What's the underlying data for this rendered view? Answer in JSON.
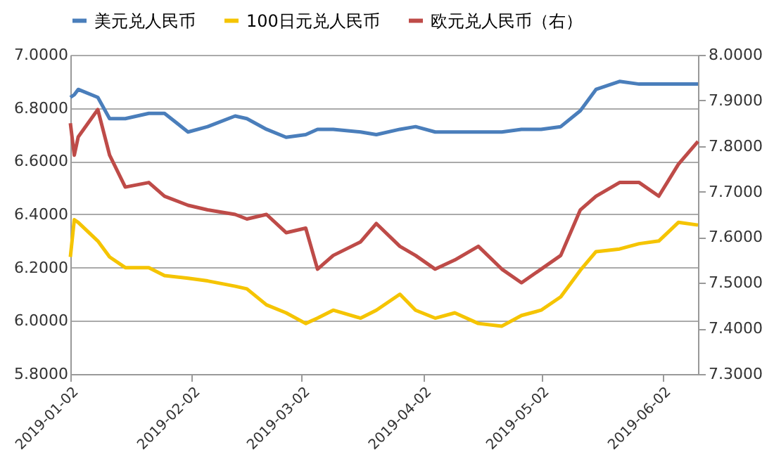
{
  "chart_data": {
    "type": "line",
    "legend": "top",
    "grid": "y",
    "x": [
      "2019-01-02",
      "2019-01-03",
      "2019-01-04",
      "2019-01-09",
      "2019-01-12",
      "2019-01-16",
      "2019-01-22",
      "2019-01-26",
      "2019-02-01",
      "2019-02-06",
      "2019-02-13",
      "2019-02-16",
      "2019-02-21",
      "2019-02-26",
      "2019-03-03",
      "2019-03-06",
      "2019-03-10",
      "2019-03-17",
      "2019-03-21",
      "2019-03-27",
      "2019-03-31",
      "2019-04-05",
      "2019-04-10",
      "2019-04-16",
      "2019-04-22",
      "2019-04-27",
      "2019-05-02",
      "2019-05-07",
      "2019-05-12",
      "2019-05-16",
      "2019-05-22",
      "2019-05-27",
      "2019-06-01",
      "2019-06-06",
      "2019-06-11"
    ],
    "series": [
      {
        "name": "美元兑人民币",
        "color": "#4a7ebb",
        "values": [
          6.84,
          6.85,
          6.87,
          6.84,
          6.76,
          6.76,
          6.78,
          6.78,
          6.71,
          6.73,
          6.77,
          6.76,
          6.72,
          6.69,
          6.7,
          6.72,
          6.72,
          6.71,
          6.7,
          6.72,
          6.73,
          6.71,
          6.71,
          6.71,
          6.71,
          6.72,
          6.72,
          6.73,
          6.79,
          6.87,
          6.9,
          6.89,
          6.89,
          6.89,
          6.89
        ]
      },
      {
        "name": "100日元兑人民币",
        "color": "#f5c400",
        "values": [
          6.24,
          6.38,
          6.37,
          6.3,
          6.24,
          6.2,
          6.2,
          6.17,
          6.16,
          6.15,
          6.13,
          6.12,
          6.06,
          6.03,
          5.99,
          6.01,
          6.04,
          6.01,
          6.04,
          6.1,
          6.04,
          6.01,
          6.03,
          5.99,
          5.98,
          6.02,
          6.04,
          6.09,
          6.19,
          6.26,
          6.27,
          6.29,
          6.3,
          6.37,
          6.36
        ]
      },
      {
        "name": "欧元兑人民币（右）",
        "color": "#be4b48",
        "axis": "y2",
        "values": [
          7.85,
          7.78,
          7.82,
          7.88,
          7.78,
          7.71,
          7.72,
          7.69,
          7.67,
          7.66,
          7.65,
          7.64,
          7.65,
          7.61,
          7.62,
          7.53,
          7.56,
          7.59,
          7.63,
          7.58,
          7.56,
          7.53,
          7.55,
          7.58,
          7.53,
          7.5,
          7.53,
          7.56,
          7.66,
          7.69,
          7.72,
          7.72,
          7.69,
          7.76,
          7.81
        ]
      }
    ],
    "xlim": [
      "2019-01-02",
      "2019-06-11"
    ],
    "xticks": [
      "2019-01-02",
      "2019-02-02",
      "2019-03-02",
      "2019-04-02",
      "2019-05-02",
      "2019-06-02"
    ],
    "ylim": [
      5.8,
      7.0
    ],
    "yticks": [
      {
        "value": 5.8,
        "label": "5.8000"
      },
      {
        "value": 6.0,
        "label": "6.0000"
      },
      {
        "value": 6.2,
        "label": "6.2000"
      },
      {
        "value": 6.4,
        "label": "6.4000"
      },
      {
        "value": 6.6,
        "label": "6.6000"
      },
      {
        "value": 6.8,
        "label": "6.8000"
      },
      {
        "value": 7.0,
        "label": "7.0000"
      }
    ],
    "y2lim": [
      7.3,
      8.0
    ],
    "y2ticks": [
      {
        "value": 7.3,
        "label": "7.3000"
      },
      {
        "value": 7.4,
        "label": "7.4000"
      },
      {
        "value": 7.5,
        "label": "7.5000"
      },
      {
        "value": 7.6,
        "label": "7.6000"
      },
      {
        "value": 7.7,
        "label": "7.7000"
      },
      {
        "value": 7.8,
        "label": "7.8000"
      },
      {
        "value": 7.9,
        "label": "7.9000"
      },
      {
        "value": 8.0,
        "label": "8.0000"
      }
    ]
  }
}
